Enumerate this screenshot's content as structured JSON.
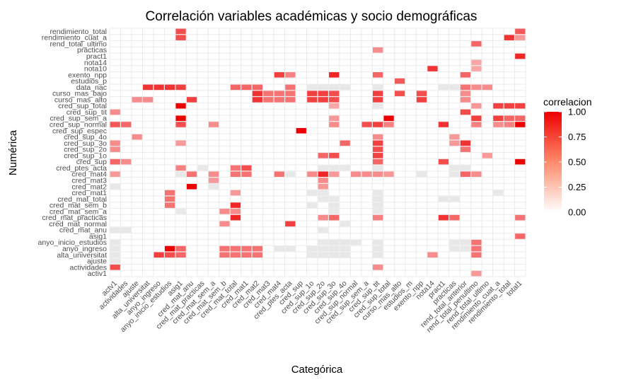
{
  "chart_data": {
    "type": "heatmap",
    "title": "Correlación variables académicas y socio demográficas",
    "xlabel": "Categórica",
    "ylabel": "Numérica",
    "legend": {
      "title": "correlacion",
      "position": "right",
      "ticks": [
        "1.00",
        "0.75",
        "0.50",
        "0.25",
        "0.00"
      ],
      "tick_values": [
        1.0,
        0.75,
        0.5,
        0.25,
        0.0
      ],
      "low_color": "#ffffff",
      "high_color": "#ee0000"
    },
    "grid": true,
    "missing_color": "#e8e8e8",
    "x": [
      "actv1",
      "actividades",
      "ajuste",
      "alta_universitat",
      "anyo_ingreso",
      "anyo_inicio_estudios",
      "asig1",
      "cred_mat_anu",
      "cred_mat_practicas",
      "cred_mat_sem_a",
      "cred_mat_sem_b",
      "cred_mat_total",
      "cred_mat1",
      "cred_mat2",
      "cred_mat3",
      "cred_mat4",
      "cred_ptes_acta",
      "cred_sup",
      "cred_sup_1o",
      "cred_sup_2o",
      "cred_sup_3o",
      "cred_sup_4o",
      "cred_sup_normal",
      "cred_sup_sem_a",
      "cred_sup_tit",
      "cred_sup_total",
      "curso_mas_alto",
      "estudios_m",
      "exento_npp",
      "nota14",
      "pract1",
      "practicas",
      "rend_total_anterior",
      "rend_total_penultimo",
      "rend_total_ultimo",
      "rendimiento_cuat_a",
      "rendimiento_total",
      "total1"
    ],
    "y": [
      "activ1",
      "actividades",
      "ajuste",
      "alta_universitat",
      "anyo_ingreso",
      "anyo_inicio_estudios",
      "asig1",
      "cred_mat_anu",
      "cred_mat_normal",
      "cred_mat_practicas",
      "cred_mat_sem_a",
      "cred_mat_sem_b",
      "cred_mat_total",
      "cred_mat1",
      "cred_mat2",
      "cred_mat3",
      "cred_mat4",
      "cred_ptes_acta",
      "cred_sup",
      "cred_sup_1o",
      "cred_sup_2o",
      "cred_sup_3o",
      "cred_sup_4o",
      "cred_sup_espec",
      "cred_sup_normal",
      "cred_sup_sem_a",
      "cred_sup_tit",
      "cred_sup_total",
      "curso_mas_alto",
      "curso_mas_bajo",
      "data_nac",
      "estudios_p",
      "exento_npp",
      "nota10",
      "nota14",
      "pract1",
      "practicas",
      "rend_total_ultimo",
      "rendimiento_cuat_a",
      "rendimiento_total"
    ],
    "cells": [
      [
        "rendimiento_total",
        "asig1",
        0.7
      ],
      [
        "rendimiento_total",
        "total1",
        0.65
      ],
      [
        "rendimiento_cuat_a",
        "asig1",
        0.7
      ],
      [
        "rendimiento_cuat_a",
        "rendimiento_total",
        0.8
      ],
      [
        "rendimiento_cuat_a",
        "total1",
        0.4
      ],
      [
        "rend_total_ultimo",
        "rend_total_penultimo",
        0.6
      ],
      [
        "practicas",
        "cred_sup_tit",
        0.45
      ],
      [
        "pract1",
        "total1",
        0.85
      ],
      [
        "nota14",
        "rend_total_penultimo",
        0.35
      ],
      [
        "nota10",
        "nota14",
        0.8
      ],
      [
        "nota10",
        "rend_total_penultimo",
        0.35
      ],
      [
        "exento_npp",
        "cred_mat4",
        0.75
      ],
      [
        "exento_npp",
        "cred_ptes_acta",
        0.5
      ],
      [
        "exento_npp",
        "cred_sup_3o",
        0.85
      ],
      [
        "exento_npp",
        "cred_sup_tit",
        0.6
      ],
      [
        "exento_npp",
        "rend_total_anterior",
        0.6
      ],
      [
        "estudios_p",
        "curso_mas_alto",
        0.65
      ],
      [
        "data_nac",
        "alta_universitat",
        0.8
      ],
      [
        "data_nac",
        "anyo_ingreso",
        0.8
      ],
      [
        "data_nac",
        "anyo_inicio_estudios",
        0.8
      ],
      [
        "data_nac",
        "asig1",
        0.75
      ],
      [
        "data_nac",
        "cred_mat_total",
        0.6
      ],
      [
        "data_nac",
        "cred_mat1",
        0.6
      ],
      [
        "data_nac",
        "cred_mat2",
        0.6
      ],
      [
        "data_nac",
        "cred_ptes_acta",
        0.55
      ],
      [
        "data_nac",
        "cred_sup_1o",
        null
      ],
      [
        "data_nac",
        "cred_sup_2o",
        null
      ],
      [
        "data_nac",
        "cred_sup_3o",
        null
      ],
      [
        "data_nac",
        "cred_sup_4o",
        null
      ],
      [
        "data_nac",
        "cred_sup_tit",
        null
      ],
      [
        "data_nac",
        "pract1",
        null
      ],
      [
        "data_nac",
        "practicas",
        null
      ],
      [
        "data_nac",
        "rend_total_anterior",
        0.55
      ],
      [
        "data_nac",
        "rend_total_penultimo",
        0.45
      ],
      [
        "data_nac",
        "rend_total_ultimo",
        0.45
      ],
      [
        "curso_mas_bajo",
        "cred_mat2",
        0.8
      ],
      [
        "curso_mas_bajo",
        "cred_mat3",
        0.55
      ],
      [
        "curso_mas_bajo",
        "cred_mat4",
        0.55
      ],
      [
        "curso_mas_bajo",
        "cred_ptes_acta",
        0.55
      ],
      [
        "curso_mas_bajo",
        "cred_sup_1o",
        0.75
      ],
      [
        "curso_mas_bajo",
        "cred_sup_2o",
        0.75
      ],
      [
        "curso_mas_bajo",
        "cred_sup_3o",
        0.7
      ],
      [
        "curso_mas_bajo",
        "cred_sup_tit",
        0.75
      ],
      [
        "curso_mas_bajo",
        "curso_mas_alto",
        0.7
      ],
      [
        "curso_mas_bajo",
        "exento_npp",
        0.7
      ],
      [
        "curso_mas_bajo",
        "rend_total_anterior",
        0.45
      ],
      [
        "curso_mas_alto",
        "ajuste",
        0.45
      ],
      [
        "curso_mas_alto",
        "alta_universitat",
        0.45
      ],
      [
        "curso_mas_alto",
        "cred_mat_anu",
        0.75
      ],
      [
        "curso_mas_alto",
        "cred_mat2",
        0.8
      ],
      [
        "curso_mas_alto",
        "cred_mat3",
        0.55
      ],
      [
        "curso_mas_alto",
        "cred_mat4",
        0.55
      ],
      [
        "curso_mas_alto",
        "cred_ptes_acta",
        0.55
      ],
      [
        "curso_mas_alto",
        "cred_sup_1o",
        0.75
      ],
      [
        "curso_mas_alto",
        "cred_sup_2o",
        0.75
      ],
      [
        "curso_mas_alto",
        "cred_sup_3o",
        0.7
      ],
      [
        "curso_mas_alto",
        "cred_sup_tit",
        0.75
      ],
      [
        "curso_mas_alto",
        "exento_npp",
        0.75
      ],
      [
        "curso_mas_alto",
        "rend_total_anterior",
        0.45
      ],
      [
        "cred_sup_total",
        "asig1",
        1.0
      ],
      [
        "cred_sup_total",
        "cred_sup_3o",
        0.35
      ],
      [
        "cred_sup_total",
        "cred_sup_tit",
        null
      ],
      [
        "cred_sup_total",
        "rend_total_penultimo",
        0.4
      ],
      [
        "cred_sup_total",
        "rendimiento_cuat_a",
        0.75
      ],
      [
        "cred_sup_total",
        "rendimiento_total",
        0.75
      ],
      [
        "cred_sup_total",
        "total1",
        0.75
      ],
      [
        "cred_sup_tit",
        "actv1",
        0.45
      ],
      [
        "cred_sup_tit",
        "rend_total_anterior",
        0.7
      ],
      [
        "cred_sup_sem_a",
        "asig1",
        1.0
      ],
      [
        "cred_sup_sem_a",
        "cred_sup_3o",
        0.4
      ],
      [
        "cred_sup_sem_a",
        "cred_sup_total",
        1.0
      ],
      [
        "cred_sup_sem_a",
        "rend_total_penultimo",
        0.75
      ],
      [
        "cred_sup_sem_a",
        "rendimiento_cuat_a",
        0.75
      ],
      [
        "cred_sup_sem_a",
        "rendimiento_total",
        0.6
      ],
      [
        "cred_sup_sem_a",
        "total1",
        0.6
      ],
      [
        "cred_sup_normal",
        "actv1",
        0.65
      ],
      [
        "cred_sup_normal",
        "actividades",
        0.6
      ],
      [
        "cred_sup_normal",
        "asig1",
        0.7
      ],
      [
        "cred_sup_normal",
        "cred_mat_sem_a",
        0.45
      ],
      [
        "cred_sup_normal",
        "cred_sup_3o",
        0.45
      ],
      [
        "cred_sup_normal",
        "cred_sup_tit",
        0.75
      ],
      [
        "cred_sup_normal",
        "cred_sup_sem_a",
        0.7
      ],
      [
        "cred_sup_normal",
        "cred_sup_total",
        0.5
      ],
      [
        "cred_sup_normal",
        "pract1",
        0.8
      ],
      [
        "cred_sup_normal",
        "rend_total_penultimo",
        0.5
      ],
      [
        "cred_sup_normal",
        "rendimiento_cuat_a",
        0.45
      ],
      [
        "cred_sup_normal",
        "rendimiento_total",
        0.5
      ],
      [
        "cred_sup_normal",
        "total1",
        1.0
      ],
      [
        "cred_sup_espec",
        "cred_sup",
        1.0
      ],
      [
        "cred_sup_4o",
        "ajuste",
        0.45
      ],
      [
        "cred_sup_4o",
        "cred_sup_tit",
        0.45
      ],
      [
        "cred_sup_4o",
        "practicas",
        0.4
      ],
      [
        "cred_sup_3o",
        "actv1",
        0.45
      ],
      [
        "cred_sup_3o",
        "asig1",
        0.4
      ],
      [
        "cred_sup_3o",
        "cred_sup_4o",
        0.6
      ],
      [
        "cred_sup_3o",
        "cred_sup_tit",
        0.75
      ],
      [
        "cred_sup_3o",
        "practicas",
        0.4
      ],
      [
        "cred_sup_3o",
        "rend_total_anterior",
        0.8
      ],
      [
        "cred_sup_2o",
        "actv1",
        0.45
      ],
      [
        "cred_sup_2o",
        "cred_sup_tit",
        0.7
      ],
      [
        "cred_sup_2o",
        "rend_total_anterior",
        0.55
      ],
      [
        "cred_sup_1o",
        "cred_sup_2o",
        0.6
      ],
      [
        "cred_sup_1o",
        "cred_sup_3o",
        0.7
      ],
      [
        "cred_sup_1o",
        "cred_sup_tit",
        0.75
      ],
      [
        "cred_sup_1o",
        "rend_total_ultimo",
        0.4
      ],
      [
        "cred_sup",
        "actv1",
        0.6
      ],
      [
        "cred_sup",
        "actividades",
        0.45
      ],
      [
        "cred_sup",
        "cred_sup_tit",
        0.6
      ],
      [
        "cred_sup",
        "pract1",
        0.7
      ],
      [
        "cred_sup",
        "total1",
        1.0
      ],
      [
        "cred_ptes_acta",
        "asig1",
        0.5
      ],
      [
        "cred_ptes_acta",
        "cred_mat_practicas",
        null
      ],
      [
        "cred_ptes_acta",
        "cred_mat_total",
        0.55
      ],
      [
        "cred_ptes_acta",
        "cred_mat1",
        0.7
      ],
      [
        "cred_ptes_acta",
        "cred_sup_2o",
        null
      ],
      [
        "cred_ptes_acta",
        "cred_sup_3o",
        null
      ],
      [
        "cred_ptes_acta",
        "cred_sup_4o",
        null
      ],
      [
        "cred_ptes_acta",
        "cred_sup_tit",
        null
      ],
      [
        "cred_ptes_acta",
        "practicas",
        null
      ],
      [
        "cred_ptes_acta",
        "rend_total_anterior",
        null
      ],
      [
        "cred_mat4",
        "actv1",
        0.4
      ],
      [
        "cred_mat4",
        "asig1",
        null
      ],
      [
        "cred_mat4",
        "cred_mat_anu",
        0.55
      ],
      [
        "cred_mat4",
        "cred_mat_sem_a",
        0.45
      ],
      [
        "cred_mat4",
        "cred_mat_total",
        0.55
      ],
      [
        "cred_mat4",
        "cred_mat1",
        0.55
      ],
      [
        "cred_mat4",
        "cred_mat4",
        0.55
      ],
      [
        "cred_mat4",
        "cred_ptes_acta",
        null
      ],
      [
        "cred_mat4",
        "cred_sup_1o",
        0.45
      ],
      [
        "cred_mat4",
        "cred_sup_2o",
        0.85
      ],
      [
        "cred_mat4",
        "cred_sup_3o",
        0.4
      ],
      [
        "cred_mat4",
        "cred_sup_normal",
        0.45
      ],
      [
        "cred_mat4",
        "cred_sup_sem_a",
        0.45
      ],
      [
        "cred_mat4",
        "cred_sup_tit",
        0.45
      ],
      [
        "cred_mat4",
        "cred_sup_total",
        0.4
      ],
      [
        "cred_mat4",
        "exento_npp",
        null
      ],
      [
        "cred_mat4",
        "practicas",
        null
      ],
      [
        "cred_mat4",
        "rend_total_anterior",
        0.6
      ],
      [
        "cred_mat4",
        "rend_total_penultimo",
        0.45
      ],
      [
        "cred_mat3",
        "cred_mat_sem_a",
        0.4
      ],
      [
        "cred_mat3",
        "cred_sup_2o",
        0.45
      ],
      [
        "cred_mat2",
        "actv1",
        null
      ],
      [
        "cred_mat2",
        "cred_mat_anu",
        1.0
      ],
      [
        "cred_mat2",
        "cred_mat_sem_a",
        null
      ],
      [
        "cred_mat2",
        "cred_sup_2o",
        0.4
      ],
      [
        "cred_mat1",
        "anyo_inicio_estudios",
        0.55
      ],
      [
        "cred_mat1",
        "cred_mat_total",
        0.4
      ],
      [
        "cred_mat1",
        "cred_sup_1o",
        null
      ],
      [
        "cred_mat1",
        "cred_sup_2o",
        null
      ],
      [
        "cred_mat1",
        "cred_sup_tit",
        null
      ],
      [
        "cred_mat1",
        "rendimiento_cuat_a",
        null
      ],
      [
        "cred_mat_total",
        "anyo_inicio_estudios",
        0.55
      ],
      [
        "cred_mat_total",
        "cred_sup_2o",
        null
      ],
      [
        "cred_mat_total",
        "cred_sup_3o",
        null
      ],
      [
        "cred_mat_total",
        "cred_sup_tit",
        null
      ],
      [
        "cred_mat_total",
        "pract1",
        null
      ],
      [
        "cred_mat_total",
        "practicas",
        null
      ],
      [
        "cred_mat_sem_b",
        "anyo_inicio_estudios",
        0.55
      ],
      [
        "cred_mat_sem_b",
        "cred_mat_total",
        0.85
      ],
      [
        "cred_mat_sem_b",
        "cred_sup_1o",
        null
      ],
      [
        "cred_mat_sem_b",
        "cred_sup_3o",
        null
      ],
      [
        "cred_mat_sem_b",
        "cred_sup_tit",
        null
      ],
      [
        "cred_mat_sem_a",
        "asig1",
        null
      ],
      [
        "cred_mat_sem_a",
        "cred_mat_sem_b",
        0.45
      ],
      [
        "cred_mat_sem_a",
        "cred_mat_total",
        0.45
      ],
      [
        "cred_mat_sem_a",
        "cred_sup_3o",
        null
      ],
      [
        "cred_mat_sem_a",
        "cred_sup_tit",
        null
      ],
      [
        "cred_mat_practicas",
        "cred_mat_total",
        0.85
      ],
      [
        "cred_mat_practicas",
        "cred_sup_2o",
        0.45
      ],
      [
        "cred_mat_practicas",
        "cred_sup_3o",
        0.6
      ],
      [
        "cred_mat_practicas",
        "cred_sup_tit",
        0.5
      ],
      [
        "cred_mat_practicas",
        "pract1",
        0.8
      ],
      [
        "cred_mat_practicas",
        "practicas",
        0.6
      ],
      [
        "cred_mat_practicas",
        "total1",
        0.55
      ],
      [
        "cred_mat_normal",
        "cred_mat_sem_b",
        0.45
      ],
      [
        "cred_mat_normal",
        "cred_ptes_acta",
        0.75
      ],
      [
        "cred_mat_normal",
        "cred_sup_4o",
        null
      ],
      [
        "cred_mat_anu",
        "actv1",
        null
      ],
      [
        "cred_mat_anu",
        "actividades",
        null
      ],
      [
        "cred_mat_anu",
        "cred_sup_2o",
        null
      ],
      [
        "asig1",
        "total1",
        0.6
      ],
      [
        "anyo_inicio_estudios",
        "actv1",
        null
      ],
      [
        "anyo_inicio_estudios",
        "cred_sup_2o",
        null
      ],
      [
        "anyo_inicio_estudios",
        "cred_sup_3o",
        null
      ],
      [
        "anyo_inicio_estudios",
        "cred_sup_4o",
        null
      ],
      [
        "anyo_inicio_estudios",
        "cred_sup_normal",
        null
      ],
      [
        "anyo_inicio_estudios",
        "cred_sup_tit",
        null
      ],
      [
        "anyo_inicio_estudios",
        "practicas",
        null
      ],
      [
        "anyo_inicio_estudios",
        "rend_total_anterior",
        null
      ],
      [
        "anyo_inicio_estudios",
        "rend_total_penultimo",
        0.55
      ],
      [
        "anyo_ingreso",
        "actv1",
        null
      ],
      [
        "anyo_ingreso",
        "anyo_inicio_estudios",
        1.0
      ],
      [
        "anyo_ingreso",
        "asig1",
        0.6
      ],
      [
        "anyo_ingreso",
        "cred_mat_sem_b",
        0.55
      ],
      [
        "anyo_ingreso",
        "cred_mat_total",
        0.55
      ],
      [
        "anyo_ingreso",
        "cred_mat1",
        0.55
      ],
      [
        "anyo_ingreso",
        "cred_mat2",
        0.55
      ],
      [
        "anyo_ingreso",
        "cred_mat4",
        null
      ],
      [
        "anyo_ingreso",
        "cred_ptes_acta",
        null
      ],
      [
        "anyo_ingreso",
        "cred_sup_1o",
        null
      ],
      [
        "anyo_ingreso",
        "cred_sup_2o",
        null
      ],
      [
        "anyo_ingreso",
        "cred_sup_3o",
        null
      ],
      [
        "anyo_ingreso",
        "cred_sup_4o",
        null
      ],
      [
        "anyo_ingreso",
        "cred_sup_tit",
        null
      ],
      [
        "anyo_ingreso",
        "practicas",
        null
      ],
      [
        "anyo_ingreso",
        "rend_total_anterior",
        null
      ],
      [
        "anyo_ingreso",
        "rend_total_penultimo",
        0.55
      ],
      [
        "alta_universitat",
        "actv1",
        null
      ],
      [
        "alta_universitat",
        "anyo_ingreso",
        0.75
      ],
      [
        "alta_universitat",
        "anyo_inicio_estudios",
        0.7
      ],
      [
        "alta_universitat",
        "asig1",
        0.6
      ],
      [
        "alta_universitat",
        "cred_mat_sem_b",
        0.55
      ],
      [
        "alta_universitat",
        "cred_mat_total",
        0.55
      ],
      [
        "alta_universitat",
        "cred_mat1",
        0.55
      ],
      [
        "alta_universitat",
        "cred_mat2",
        0.55
      ],
      [
        "alta_universitat",
        "cred_sup_1o",
        null
      ],
      [
        "alta_universitat",
        "cred_sup_2o",
        null
      ],
      [
        "alta_universitat",
        "cred_sup_3o",
        null
      ],
      [
        "alta_universitat",
        "cred_sup_4o",
        null
      ],
      [
        "alta_universitat",
        "cred_sup_tit",
        null
      ],
      [
        "alta_universitat",
        "nota14",
        0.45
      ],
      [
        "alta_universitat",
        "rend_total_penultimo",
        0.55
      ],
      [
        "ajuste",
        "actv1",
        null
      ],
      [
        "actividades",
        "actv1",
        0.7
      ],
      [
        "actividades",
        "cred_sup_tit",
        0.45
      ],
      [
        "activ1",
        "rend_total_penultimo",
        0.4
      ]
    ]
  }
}
